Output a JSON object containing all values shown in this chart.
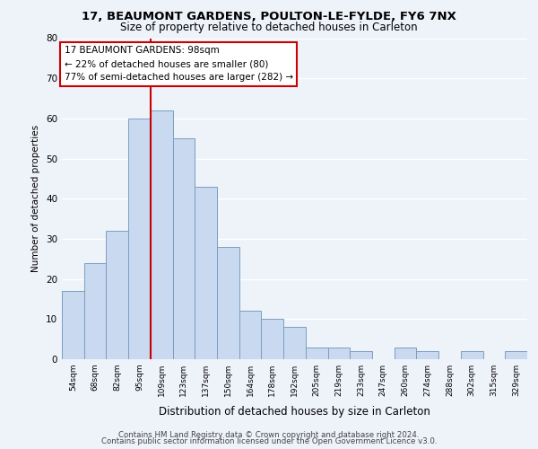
{
  "title1": "17, BEAUMONT GARDENS, POULTON-LE-FYLDE, FY6 7NX",
  "title2": "Size of property relative to detached houses in Carleton",
  "xlabel": "Distribution of detached houses by size in Carleton",
  "ylabel": "Number of detached properties",
  "categories": [
    "54sqm",
    "68sqm",
    "82sqm",
    "95sqm",
    "109sqm",
    "123sqm",
    "137sqm",
    "150sqm",
    "164sqm",
    "178sqm",
    "192sqm",
    "205sqm",
    "219sqm",
    "233sqm",
    "247sqm",
    "260sqm",
    "274sqm",
    "288sqm",
    "302sqm",
    "315sqm",
    "329sqm"
  ],
  "values": [
    17,
    24,
    32,
    60,
    62,
    55,
    43,
    28,
    12,
    10,
    8,
    3,
    3,
    2,
    0,
    3,
    2,
    0,
    2,
    0,
    2
  ],
  "bar_color": "#c8d9f0",
  "bar_edge_color": "#7a9fc2",
  "background_color": "#eef2f9",
  "grid_color": "#ffffff",
  "vline_x_idx": 3.5,
  "vline_color": "#cc0000",
  "annotation_line1": "17 BEAUMONT GARDENS: 98sqm",
  "annotation_line2": "← 22% of detached houses are smaller (80)",
  "annotation_line3": "77% of semi-detached houses are larger (282) →",
  "annotation_box_color": "#ffffff",
  "annotation_box_edge": "#cc0000",
  "ylim": [
    0,
    80
  ],
  "yticks": [
    0,
    10,
    20,
    30,
    40,
    50,
    60,
    70,
    80
  ],
  "footer1": "Contains HM Land Registry data © Crown copyright and database right 2024.",
  "footer2": "Contains public sector information licensed under the Open Government Licence v3.0."
}
